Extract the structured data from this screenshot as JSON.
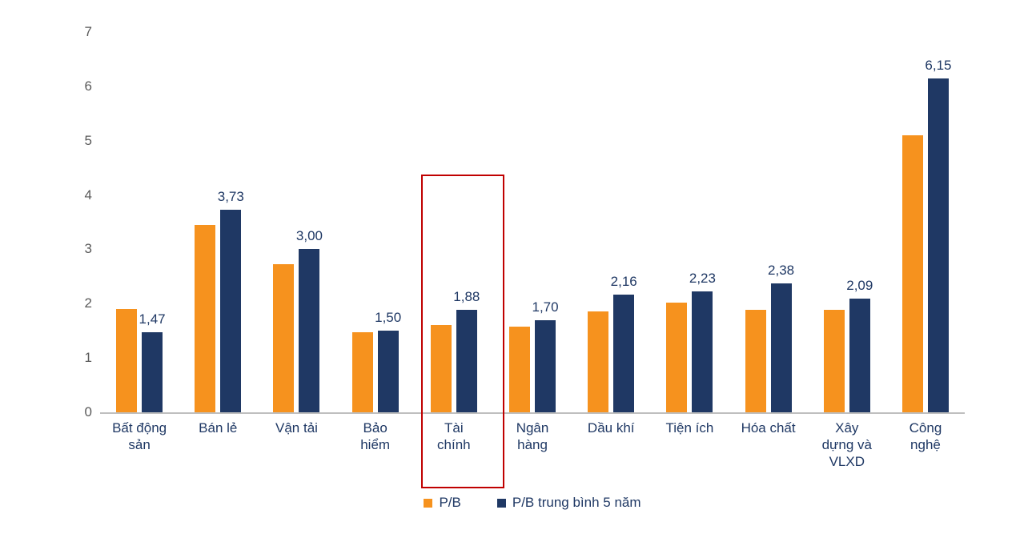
{
  "chart_data": {
    "type": "bar",
    "title": "",
    "xlabel": "",
    "ylabel": "",
    "categories": [
      "Bất động\nsản",
      "Bán lẻ",
      "Vận tải",
      "Bảo\nhiểm",
      "Tài\nchính",
      "Ngân\nhàng",
      "Dầu khí",
      "Tiện ích",
      "Hóa chất",
      "Xây\ndựng và\nVLXD",
      "Công\nnghệ"
    ],
    "series": [
      {
        "name": "P/B",
        "color": "#F6921E",
        "values": [
          1.9,
          3.45,
          2.72,
          1.47,
          1.6,
          1.57,
          1.86,
          2.02,
          1.89,
          1.88,
          5.1
        ]
      },
      {
        "name": "P/B trung bình 5 năm",
        "color": "#1F3864",
        "values": [
          1.47,
          3.73,
          3.0,
          1.5,
          1.88,
          1.7,
          2.16,
          2.23,
          2.38,
          2.09,
          6.15
        ],
        "data_labels": [
          "1,47",
          "3,73",
          "3,00",
          "1,50",
          "1,88",
          "1,70",
          "2,16",
          "2,23",
          "2,38",
          "2,09",
          "6,15"
        ]
      }
    ],
    "ylim": [
      0,
      7
    ],
    "yticks": [
      "0",
      "1",
      "2",
      "3",
      "4",
      "5",
      "6",
      "7"
    ],
    "grid": false,
    "legend_position": "bottom",
    "highlight": {
      "category": "Tài chính",
      "category_index": 4,
      "box_color": "#C00000"
    },
    "axis_line_color": "#BFBFBF",
    "tick_color": "#595959",
    "label_color": "#1F3864"
  }
}
